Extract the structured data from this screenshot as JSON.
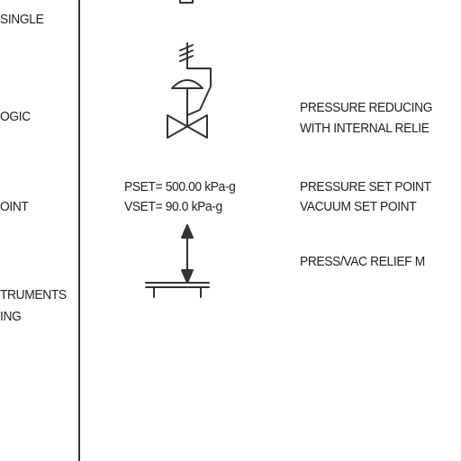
{
  "left_column": {
    "item_1": "SINGLE",
    "item_2": "OGIC",
    "item_3": "OINT",
    "item_4_line_1": "TRUMENTS",
    "item_4_line_2": "ING"
  },
  "symbols": {
    "pressure_reducing_valve": {
      "label_line_1": "PRESSURE REDUCING",
      "label_line_2": "WITH INTERNAL RELIE"
    },
    "press_vac_relief": {
      "pressure_set": "PSET= 500.00 kPa-g",
      "vacuum_set": "VSET= 90.0 kPa-g",
      "pressure_label": "PRESSURE SET POINT",
      "vacuum_label": "VACUUM SET POINT",
      "relief_label": "PRESS/VAC RELIEF M"
    }
  },
  "colors": {
    "line": "#333333",
    "text": "#222222"
  }
}
